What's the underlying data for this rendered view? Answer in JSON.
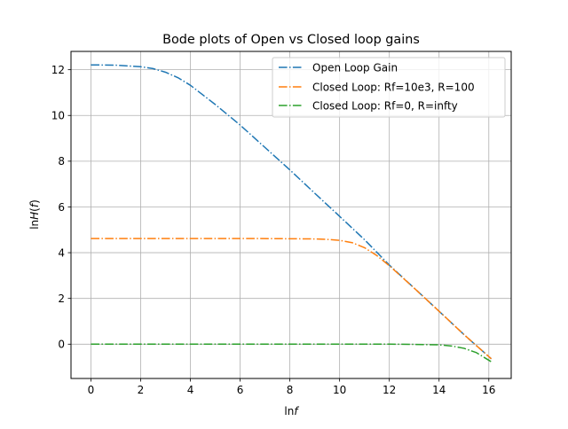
{
  "chart_data": {
    "type": "line",
    "title": "Bode plots of Open vs Closed loop gains",
    "xlabel_prefix": "ln",
    "xlabel_var": "f",
    "ylabel_prefix": "ln",
    "ylabel_H": "H",
    "ylabel_open": "(",
    "ylabel_var": "f",
    "ylabel_close": ")",
    "xlim": [
      -0.8,
      16.9
    ],
    "ylim": [
      -1.5,
      12.8
    ],
    "xticks": [
      0,
      2,
      4,
      6,
      8,
      10,
      12,
      14,
      16
    ],
    "yticks": [
      0,
      2,
      4,
      6,
      8,
      10,
      12
    ],
    "grid": true,
    "legend_position": "top-right",
    "series": [
      {
        "name": "Open Loop Gain",
        "color": "#1f77b4",
        "linestyle": "dashdot",
        "x": [
          0,
          1,
          2,
          2.5,
          3,
          3.5,
          4,
          5,
          6,
          7,
          8,
          9,
          10,
          11,
          12,
          13,
          14,
          15,
          16.1
        ],
        "y": [
          12.21,
          12.2,
          12.13,
          12.05,
          11.89,
          11.65,
          11.32,
          10.48,
          9.58,
          8.6,
          7.62,
          6.6,
          5.59,
          4.57,
          3.46,
          2.45,
          1.44,
          0.42,
          -0.64
        ]
      },
      {
        "name": "Closed Loop: Rf=10e3, R=100",
        "color": "#ff7f0e",
        "linestyle": "dashdot",
        "x": [
          0,
          2,
          4,
          6,
          8,
          9,
          9.5,
          10,
          10.5,
          11,
          11.5,
          12,
          13,
          14,
          15,
          16.1
        ],
        "y": [
          4.62,
          4.62,
          4.62,
          4.62,
          4.61,
          4.6,
          4.58,
          4.54,
          4.44,
          4.22,
          3.87,
          3.43,
          2.45,
          1.44,
          0.42,
          -0.64
        ]
      },
      {
        "name": "Closed Loop: Rf=0, R=infty",
        "color": "#2ca02c",
        "linestyle": "dashdot",
        "x": [
          0,
          4,
          8,
          10,
          12,
          13,
          14,
          14.5,
          15,
          15.5,
          16.1
        ],
        "y": [
          0.0,
          0.0,
          0.0,
          0.0,
          0.0,
          -0.01,
          -0.03,
          -0.08,
          -0.18,
          -0.37,
          -0.77
        ]
      }
    ]
  }
}
